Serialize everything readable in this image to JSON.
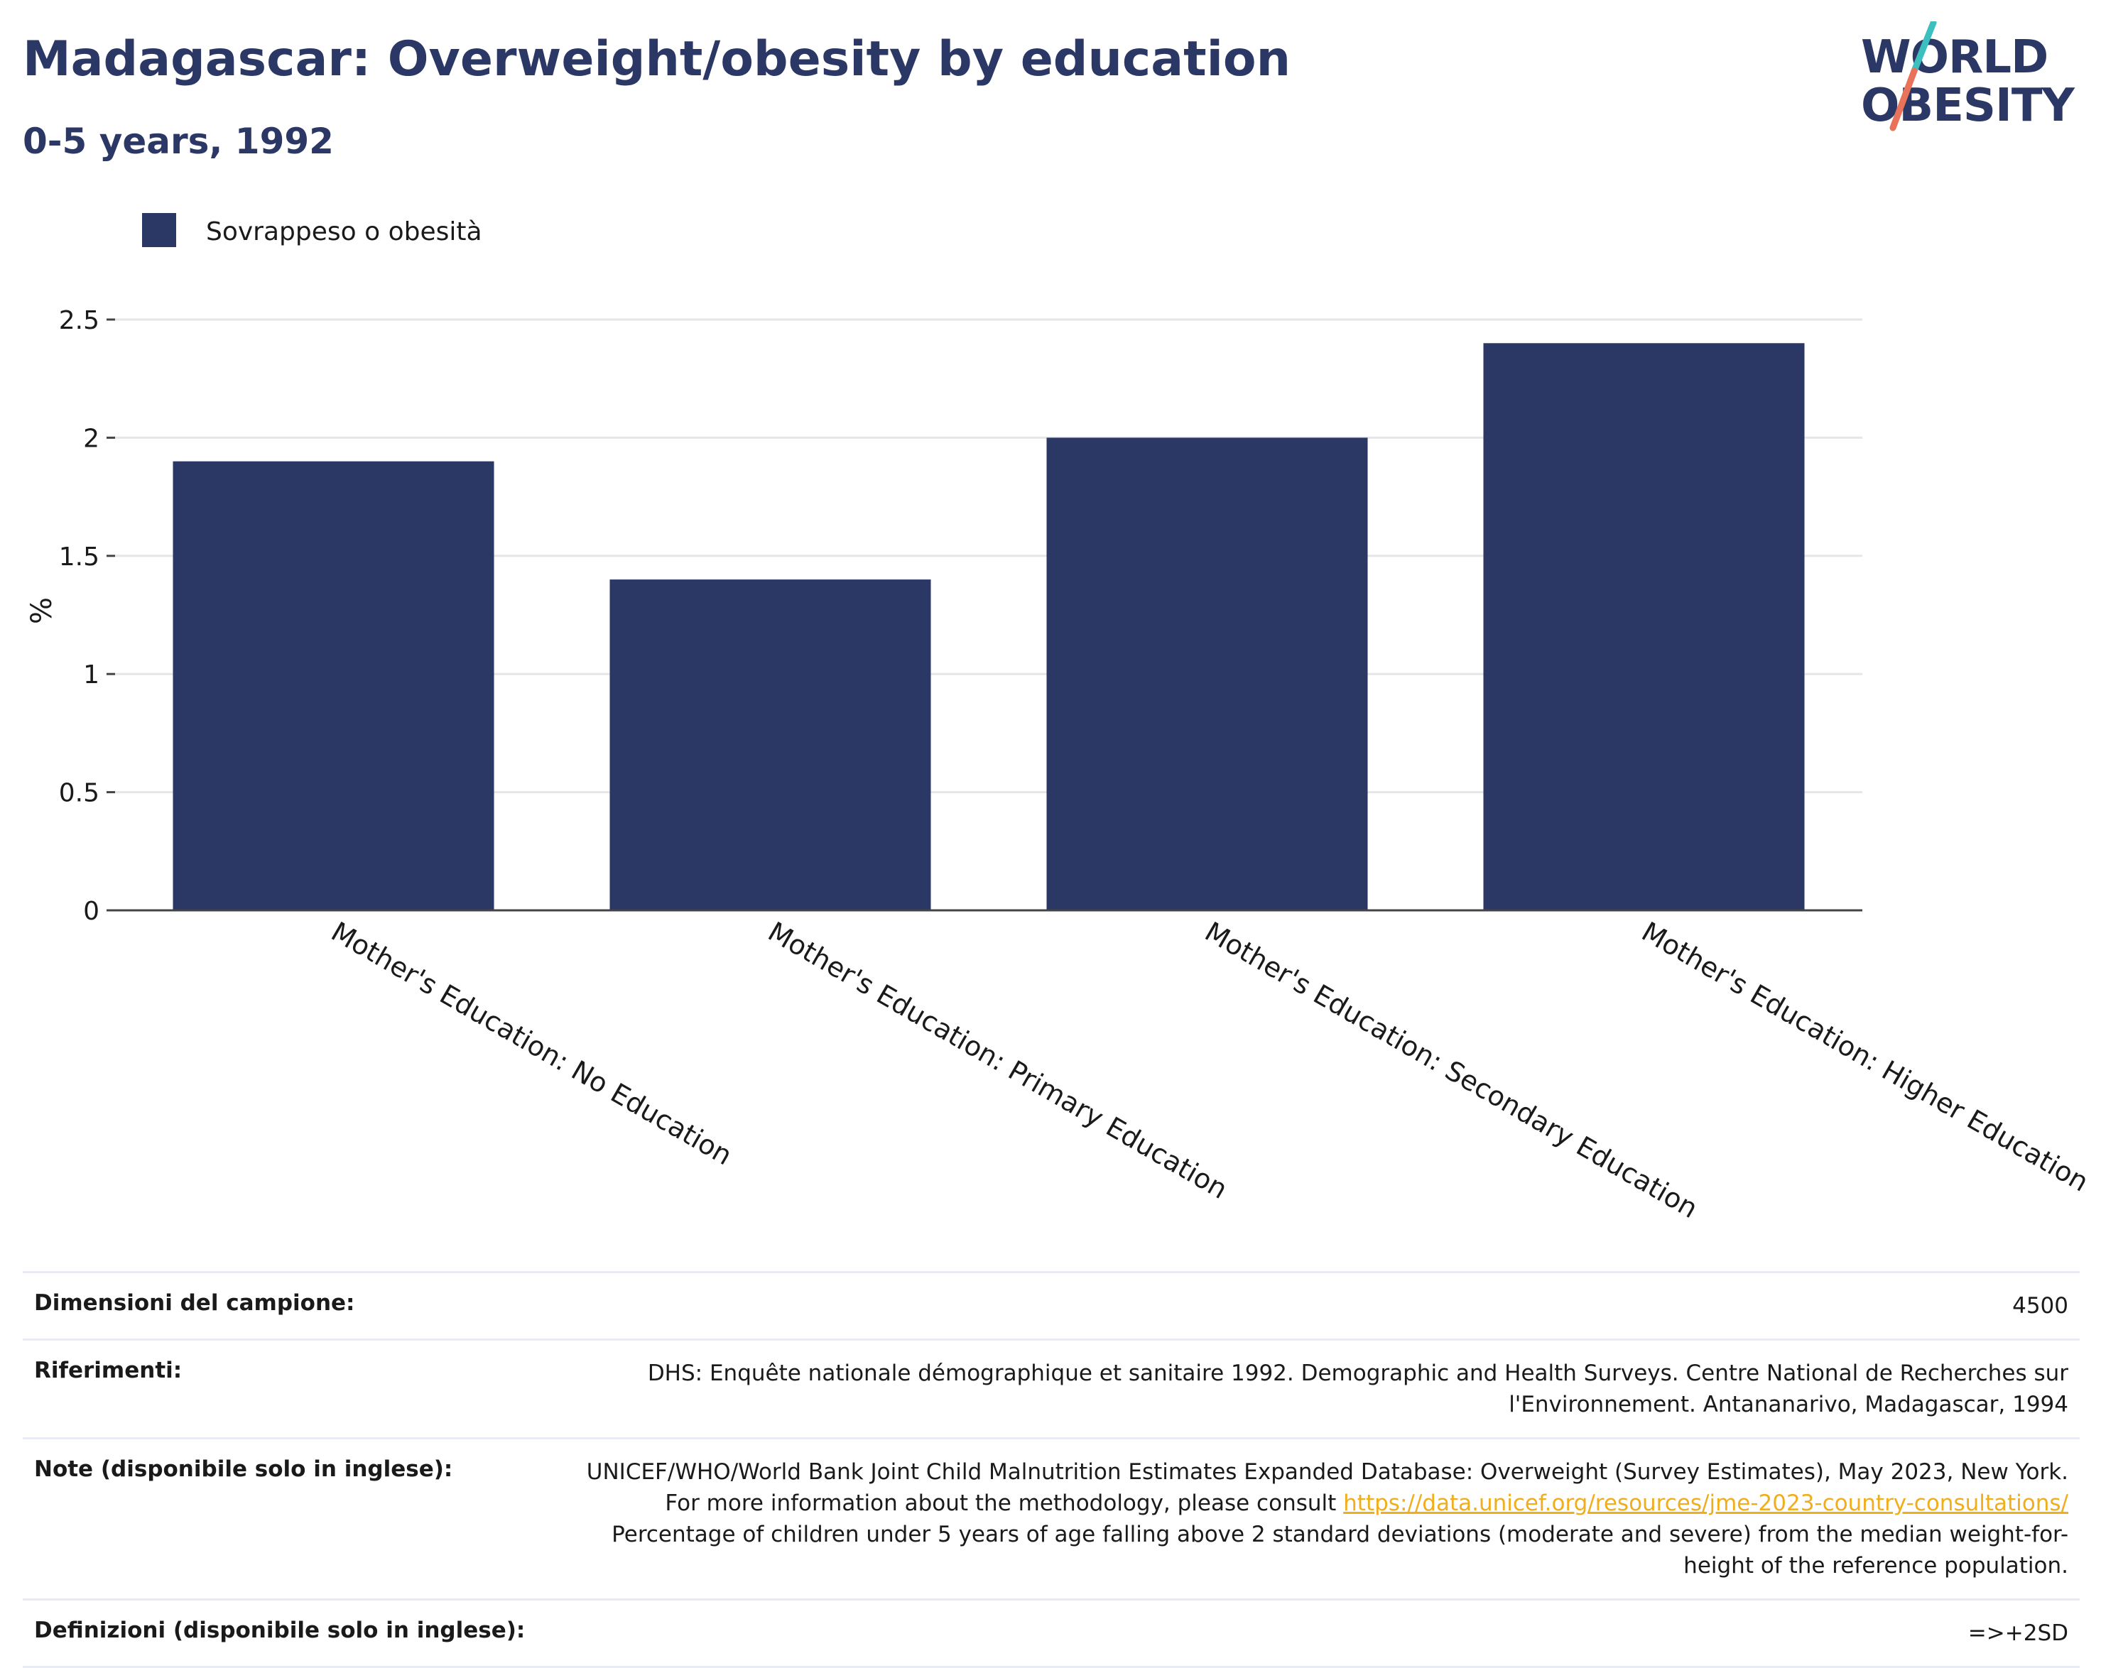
{
  "header": {
    "title": "Madagascar: Overweight/obesity by education",
    "subtitle": "0-5 years, 1992"
  },
  "logo": {
    "line1": "WORLD",
    "line2": "OBESITY"
  },
  "colors": {
    "bar": "#2b3764",
    "title": "#2b3764",
    "link": "#f0ad1c",
    "logo_teal": "#3bbfbf",
    "logo_coral": "#e8735a"
  },
  "chart_data": {
    "type": "bar",
    "categories": [
      "Mother's Education: No Education",
      "Mother's Education: Primary Education",
      "Mother's Education: Secondary Education",
      "Mother's Education: Higher Education"
    ],
    "series": [
      {
        "name": "Sovrappeso o obesità",
        "values": [
          1.9,
          1.4,
          2.0,
          2.4
        ]
      }
    ],
    "ylabel": "%",
    "ylim": [
      0,
      2.5
    ],
    "yticks": [
      0,
      0.5,
      1,
      1.5,
      2,
      2.5
    ],
    "ytick_labels": [
      "0",
      "0.5",
      "1",
      "1.5",
      "2",
      "2.5"
    ],
    "grid": true,
    "legend_position": "top-left"
  },
  "meta": {
    "sample_label": "Dimensioni del campione:",
    "sample_value": "4500",
    "ref_label": "Riferimenti:",
    "ref_value": "DHS: Enquête nationale démographique et sanitaire 1992. Demographic and Health Surveys. Centre National de Recherches sur l'Environnement. Antananarivo, Madagascar, 1994",
    "notes_label": "Note (disponibile solo in inglese):",
    "notes_pre": "UNICEF/WHO/World Bank Joint Child Malnutrition Estimates Expanded Database: Overweight (Survey Estimates), May 2023, New York. For more information about the methodology, please consult",
    "notes_link": "https://data.unicef.org/resources/jme-2023-country-consultations/",
    "notes_post": "Percentage of children under 5 years of age falling above 2 standard deviations (moderate and severe) from the median weight-for-height of the reference population.",
    "def_label": "Definizioni (disponibile solo in inglese):",
    "def_value": "=>+2SD"
  }
}
